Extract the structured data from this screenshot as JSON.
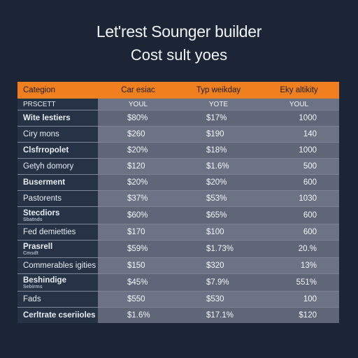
{
  "title": "Let'rest Sounger builder",
  "subtitle": "Cost sult yoes",
  "table": {
    "headers": [
      "Categion",
      "Car esiac",
      "Typ weikday",
      "Eky altikity"
    ],
    "units_row": {
      "label": "Prscett",
      "values": [
        "YOUL",
        "YOTE",
        "YOUL"
      ]
    },
    "rows": [
      {
        "category": "Wite lestiers",
        "sub": "",
        "bold": true,
        "values": [
          "$80%",
          "$17%",
          "1000"
        ]
      },
      {
        "category": "Ciry mons",
        "sub": "",
        "bold": false,
        "values": [
          "$260",
          "$190",
          "140"
        ]
      },
      {
        "category": "Clsfrropolet",
        "sub": "",
        "bold": true,
        "values": [
          "$20%",
          "$18%",
          "1000"
        ]
      },
      {
        "category": "Getyh domory",
        "sub": "",
        "bold": false,
        "values": [
          "$120",
          "$1.6%",
          "500"
        ]
      },
      {
        "category": "Buserment",
        "sub": "",
        "bold": true,
        "values": [
          "$20%",
          "$20%",
          "600"
        ]
      },
      {
        "category": "Pastorents",
        "sub": "",
        "bold": false,
        "values": [
          "$37%",
          "$53%",
          "1030"
        ]
      },
      {
        "category": "Stecdiors",
        "sub": "Sbatnds",
        "bold": true,
        "values": [
          "$60%",
          "$65%",
          "600"
        ]
      },
      {
        "category": "Fed demietties",
        "sub": "",
        "bold": false,
        "values": [
          "$170",
          "$100",
          "600"
        ]
      },
      {
        "category": "Prasrell",
        "sub": "Cmsdt",
        "bold": true,
        "values": [
          "$59%",
          "$1.73%",
          "20.%"
        ]
      },
      {
        "category": "Commerables igities",
        "sub": "",
        "bold": false,
        "values": [
          "$150",
          "$320",
          "13%"
        ]
      },
      {
        "category": "Beshindige",
        "sub": "Sebirms",
        "bold": true,
        "values": [
          "$45%",
          "$7.9%",
          "551%"
        ]
      },
      {
        "category": "Fads",
        "sub": "",
        "bold": false,
        "values": [
          "$550",
          "$530",
          "100"
        ]
      },
      {
        "category": "Cerltrate cseriioles",
        "sub": "",
        "bold": true,
        "values": [
          "$1.6%",
          "$17.1%",
          "$120"
        ]
      }
    ]
  }
}
